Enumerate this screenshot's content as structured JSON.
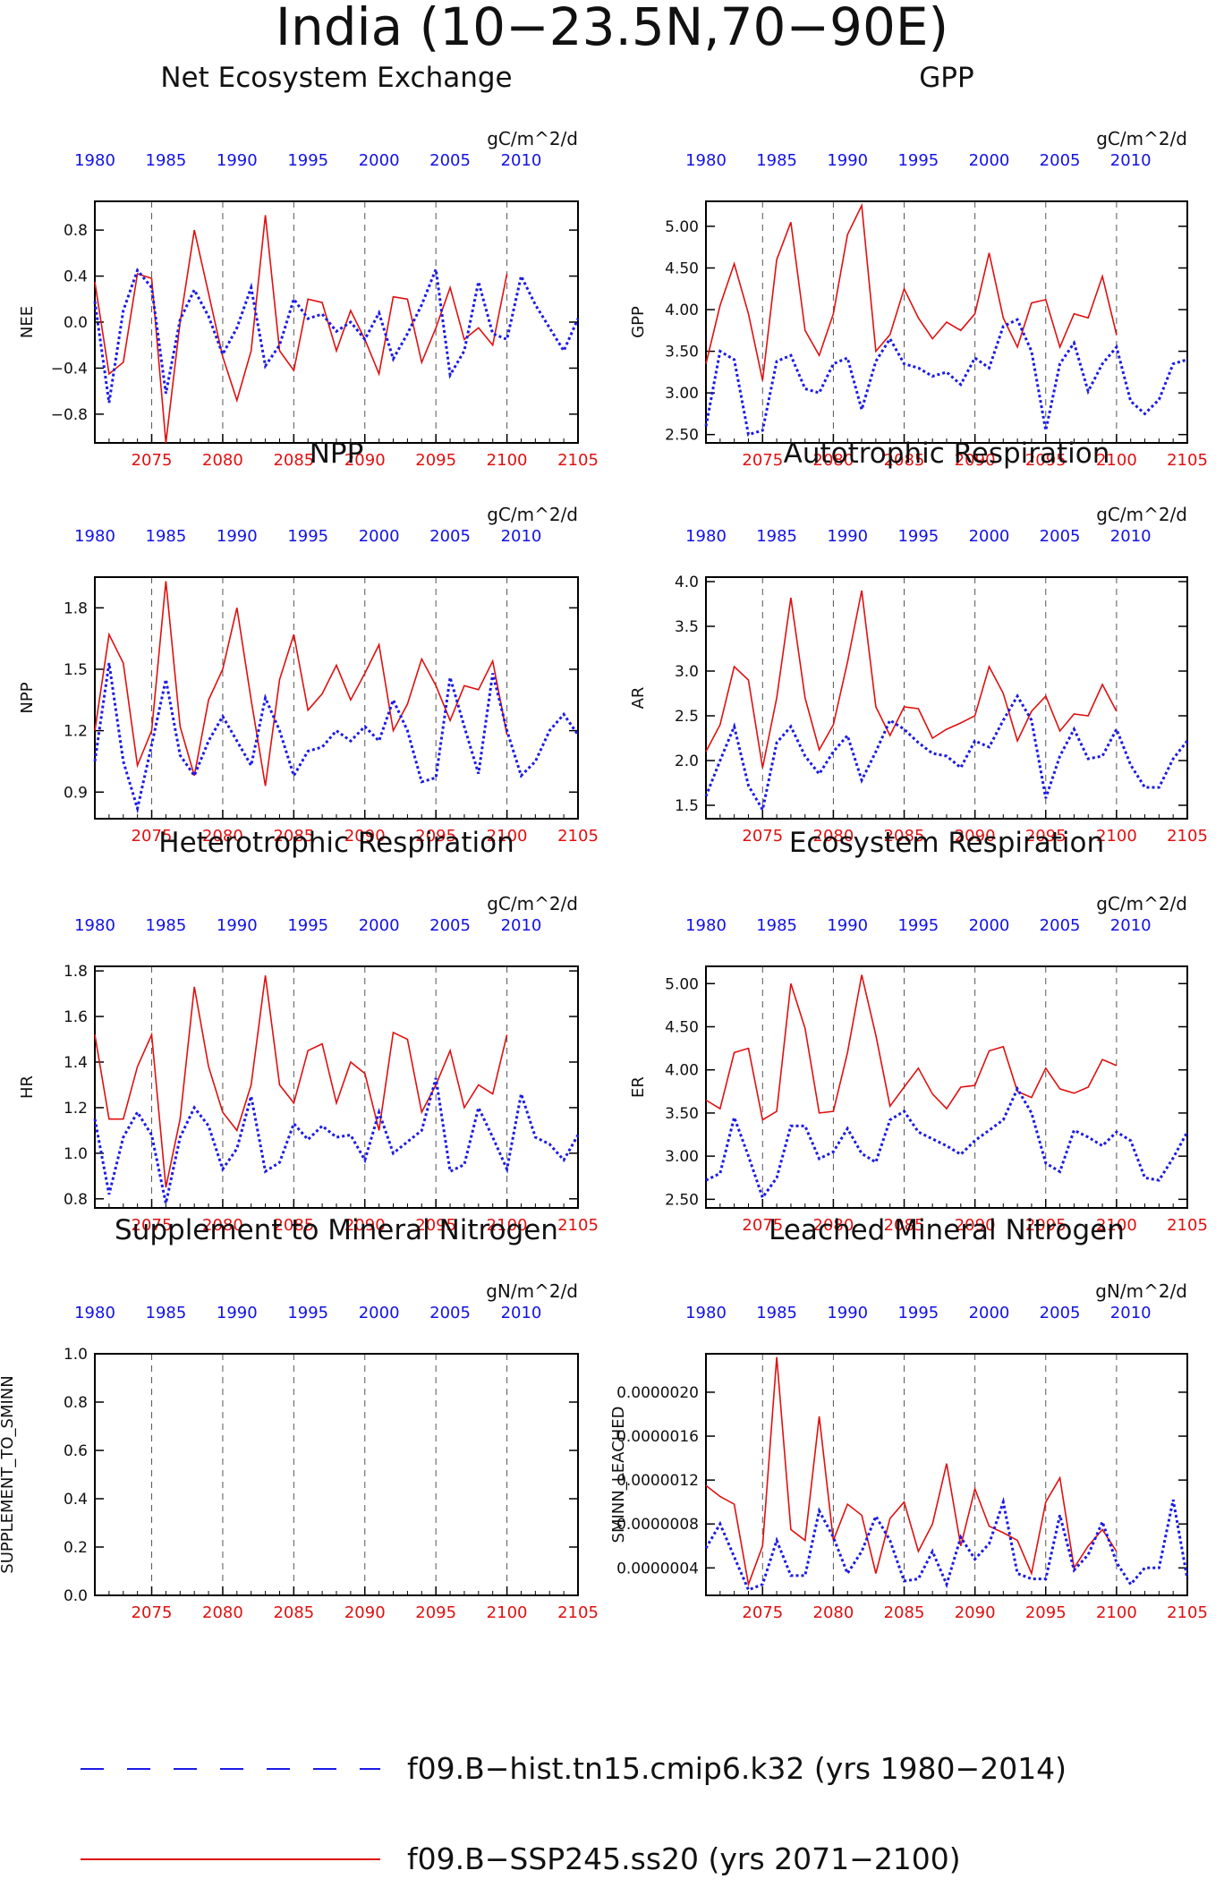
{
  "title": "India (10−23.5N,70−90E)",
  "colors": {
    "hist": "#1a1ae6",
    "ssp": "#e01010",
    "axis": "#000000",
    "grid": "#555555"
  },
  "axes_common": {
    "bottom_ticks": [
      "2075",
      "2080",
      "2085",
      "2090",
      "2095",
      "2100",
      "2105"
    ],
    "top_ticks": [
      "1980",
      "1985",
      "1990",
      "1995",
      "2000",
      "2005",
      "2010"
    ]
  },
  "legend": [
    {
      "label": "f09.B−hist.tn15.cmip6.k32 (yrs 1980−2014)",
      "style": "dashed-blue"
    },
    {
      "label": "f09.B−SSP245.ss20 (yrs 2071−2100)",
      "style": "solid-red"
    }
  ],
  "chart_data": [
    {
      "type": "line",
      "title": "Net Ecosystem Exchange",
      "units": "gC/m^2/d",
      "ylabel": "NEE",
      "ylim": [
        -1.05,
        1.05
      ],
      "yticks": [
        -0.8,
        -0.4,
        0.0,
        0.4,
        0.8
      ],
      "ytick_labels": [
        "−0.8",
        "−0.4",
        "0.0",
        "0.4",
        "0.8"
      ],
      "grid": "dashed vertical at 2075-2100",
      "series": [
        {
          "x_start": 2071,
          "values": [
            0.35,
            -0.45,
            -0.35,
            0.42,
            0.38,
            -1.08,
            0.0,
            0.8,
            0.25,
            -0.3,
            -0.68,
            -0.25,
            0.93,
            -0.25,
            -0.42,
            0.2,
            0.17,
            -0.25,
            0.1,
            -0.15,
            -0.45,
            0.22,
            0.2,
            -0.35,
            -0.05,
            0.3,
            -0.15,
            -0.05,
            -0.2,
            0.42
          ]
        },
        {
          "x_start": 2071,
          "values": [
            0.18,
            -0.7,
            0.1,
            0.45,
            0.3,
            -0.62,
            0.02,
            0.28,
            0.05,
            -0.28,
            -0.05,
            0.3,
            -0.38,
            -0.2,
            0.2,
            0.03,
            0.07,
            -0.08,
            0.0,
            -0.15,
            0.08,
            -0.32,
            -0.1,
            0.15,
            0.46,
            -0.46,
            -0.25,
            0.35,
            -0.1,
            -0.15,
            0.4,
            0.15,
            -0.05,
            -0.25,
            0.03
          ]
        }
      ]
    },
    {
      "type": "line",
      "title": "GPP",
      "units": "gC/m^2/d",
      "ylabel": "GPP",
      "ylim": [
        2.4,
        5.3
      ],
      "yticks": [
        2.5,
        3.0,
        3.5,
        4.0,
        4.5,
        5.0
      ],
      "ytick_labels": [
        "2.50",
        "3.00",
        "3.50",
        "4.00",
        "4.50",
        "5.00"
      ],
      "grid": "dashed vertical at 2075-2100",
      "series": [
        {
          "x_start": 2071,
          "values": [
            3.35,
            4.05,
            4.55,
            3.95,
            3.15,
            4.6,
            5.05,
            3.75,
            3.45,
            3.95,
            4.9,
            5.25,
            3.5,
            3.7,
            4.25,
            3.9,
            3.65,
            3.85,
            3.75,
            3.95,
            4.68,
            3.9,
            3.55,
            4.08,
            4.12,
            3.55,
            3.95,
            3.9,
            4.4,
            3.7
          ]
        },
        {
          "x_start": 2071,
          "values": [
            2.6,
            3.5,
            3.4,
            2.5,
            2.55,
            3.38,
            3.45,
            3.05,
            3.0,
            3.35,
            3.42,
            2.8,
            3.38,
            3.65,
            3.35,
            3.3,
            3.2,
            3.25,
            3.1,
            3.42,
            3.3,
            3.8,
            3.88,
            3.5,
            2.55,
            3.35,
            3.6,
            3.02,
            3.35,
            3.55,
            2.9,
            2.75,
            2.92,
            3.35,
            3.4
          ]
        }
      ]
    },
    {
      "type": "line",
      "title": "NPP",
      "units": "gC/m^2/d",
      "ylabel": "NPP",
      "ylim": [
        0.77,
        1.95
      ],
      "yticks": [
        0.9,
        1.2,
        1.5,
        1.8
      ],
      "ytick_labels": [
        "0.9",
        "1.2",
        "1.5",
        "1.8"
      ],
      "grid": "dashed vertical at 2075-2100",
      "series": [
        {
          "x_start": 2071,
          "values": [
            1.2,
            1.67,
            1.53,
            1.03,
            1.2,
            1.93,
            1.22,
            0.98,
            1.35,
            1.5,
            1.8,
            1.35,
            0.93,
            1.45,
            1.67,
            1.3,
            1.38,
            1.52,
            1.35,
            1.48,
            1.62,
            1.2,
            1.33,
            1.55,
            1.42,
            1.25,
            1.42,
            1.4,
            1.54,
            1.18
          ]
        },
        {
          "x_start": 2071,
          "values": [
            1.05,
            1.53,
            1.05,
            0.82,
            1.13,
            1.45,
            1.08,
            0.98,
            1.15,
            1.27,
            1.15,
            1.03,
            1.36,
            1.2,
            0.98,
            1.1,
            1.12,
            1.2,
            1.15,
            1.22,
            1.15,
            1.35,
            1.2,
            0.95,
            0.97,
            1.46,
            1.22,
            0.99,
            1.48,
            1.2,
            0.98,
            1.05,
            1.2,
            1.28,
            1.18
          ]
        }
      ]
    },
    {
      "type": "line",
      "title": "Autotrophic Respiration",
      "units": "gC/m^2/d",
      "ylabel": "AR",
      "ylim": [
        1.35,
        4.05
      ],
      "yticks": [
        1.5,
        2.0,
        2.5,
        3.0,
        3.5,
        4.0
      ],
      "ytick_labels": [
        "1.5",
        "2.0",
        "2.5",
        "3.0",
        "3.5",
        "4.0"
      ],
      "grid": "dashed vertical at 2075-2100",
      "series": [
        {
          "x_start": 2071,
          "values": [
            2.1,
            2.4,
            3.05,
            2.9,
            1.92,
            2.7,
            3.82,
            2.7,
            2.12,
            2.4,
            3.1,
            3.9,
            2.6,
            2.28,
            2.6,
            2.58,
            2.25,
            2.35,
            2.42,
            2.5,
            3.05,
            2.75,
            2.22,
            2.55,
            2.72,
            2.33,
            2.52,
            2.5,
            2.85,
            2.55
          ]
        },
        {
          "x_start": 2071,
          "values": [
            1.6,
            2.0,
            2.38,
            1.72,
            1.45,
            2.2,
            2.38,
            2.05,
            1.85,
            2.1,
            2.28,
            1.78,
            2.1,
            2.45,
            2.35,
            2.2,
            2.08,
            2.05,
            1.92,
            2.22,
            2.15,
            2.45,
            2.72,
            2.45,
            1.58,
            2.05,
            2.35,
            2.02,
            2.05,
            2.35,
            1.95,
            1.7,
            1.7,
            2.02,
            2.22
          ]
        }
      ]
    },
    {
      "type": "line",
      "title": "Heterotrophic Respiration",
      "units": "gC/m^2/d",
      "ylabel": "HR",
      "ylim": [
        0.76,
        1.82
      ],
      "yticks": [
        0.8,
        1.0,
        1.2,
        1.4,
        1.6,
        1.8
      ],
      "ytick_labels": [
        "0.8",
        "1.0",
        "1.2",
        "1.4",
        "1.6",
        "1.8"
      ],
      "grid": "dashed vertical at 2075-2100",
      "series": [
        {
          "x_start": 2071,
          "values": [
            1.52,
            1.15,
            1.15,
            1.38,
            1.52,
            0.85,
            1.15,
            1.73,
            1.38,
            1.18,
            1.1,
            1.3,
            1.78,
            1.3,
            1.22,
            1.45,
            1.48,
            1.22,
            1.4,
            1.35,
            1.1,
            1.53,
            1.5,
            1.18,
            1.3,
            1.45,
            1.2,
            1.3,
            1.26,
            1.52
          ]
        },
        {
          "x_start": 2071,
          "values": [
            1.15,
            0.82,
            1.07,
            1.18,
            1.08,
            0.78,
            1.07,
            1.2,
            1.12,
            0.93,
            1.02,
            1.25,
            0.92,
            0.96,
            1.13,
            1.06,
            1.12,
            1.07,
            1.08,
            0.97,
            1.18,
            1.0,
            1.05,
            1.1,
            1.33,
            0.92,
            0.95,
            1.2,
            1.07,
            0.93,
            1.26,
            1.07,
            1.04,
            0.97,
            1.08
          ]
        }
      ]
    },
    {
      "type": "line",
      "title": "Ecosystem Respiration",
      "units": "gC/m^2/d",
      "ylabel": "ER",
      "ylim": [
        2.4,
        5.2
      ],
      "yticks": [
        2.5,
        3.0,
        3.5,
        4.0,
        4.5,
        5.0
      ],
      "ytick_labels": [
        "2.50",
        "3.00",
        "3.50",
        "4.00",
        "4.50",
        "5.00"
      ],
      "grid": "dashed vertical at 2075-2100",
      "series": [
        {
          "x_start": 2071,
          "values": [
            3.65,
            3.55,
            4.2,
            4.25,
            3.42,
            3.52,
            5.0,
            4.48,
            3.5,
            3.52,
            4.2,
            5.1,
            4.4,
            3.58,
            3.8,
            4.02,
            3.72,
            3.55,
            3.8,
            3.82,
            4.22,
            4.27,
            3.75,
            3.68,
            4.02,
            3.78,
            3.73,
            3.8,
            4.12,
            4.05
          ]
        },
        {
          "x_start": 2071,
          "values": [
            2.72,
            2.8,
            3.45,
            3.0,
            2.52,
            2.75,
            3.35,
            3.35,
            2.97,
            3.05,
            3.32,
            3.03,
            2.93,
            3.42,
            3.52,
            3.28,
            3.2,
            3.12,
            3.02,
            3.18,
            3.3,
            3.42,
            3.78,
            3.5,
            2.92,
            2.82,
            3.3,
            3.22,
            3.12,
            3.28,
            3.18,
            2.75,
            2.72,
            2.98,
            3.28
          ]
        }
      ]
    },
    {
      "type": "line",
      "title": "Supplement to Mineral Nitrogen",
      "units": "gN/m^2/d",
      "ylabel": "SUPPLEMENT_TO_SMINN",
      "ylim": [
        0.0,
        1.0
      ],
      "yticks": [
        0.0,
        0.2,
        0.4,
        0.6,
        0.8,
        1.0
      ],
      "ytick_labels": [
        "0.0",
        "0.2",
        "0.4",
        "0.6",
        "0.8",
        "1.0"
      ],
      "grid": "dashed vertical at 2075-2100",
      "series": []
    },
    {
      "type": "line",
      "title": "Leached Mineral Nitrogen",
      "units": "gN/m^2/d",
      "ylabel": "SMINN_LEACHED",
      "ylim": [
        1.5e-07,
        2.35e-06
      ],
      "yticks": [
        4e-07,
        8e-07,
        1.2e-06,
        1.6e-06,
        2e-06
      ],
      "ytick_labels": [
        "0.0000004",
        "0.0000008",
        "0.0000012",
        "0.0000016",
        "0.0000020"
      ],
      "grid": "dashed vertical at 2075-2100",
      "series": [
        {
          "x_start": 2071,
          "values": [
            1.15e-06,
            1.05e-06,
            9.8e-07,
            2.5e-07,
            6e-07,
            2.32e-06,
            7.5e-07,
            6.5e-07,
            1.78e-06,
            6.5e-07,
            9.8e-07,
            8.8e-07,
            3.5e-07,
            8.5e-07,
            1e-06,
            5.5e-07,
            8e-07,
            1.35e-06,
            6e-07,
            1.12e-06,
            7.8e-07,
            7.2e-07,
            6.5e-07,
            3.5e-07,
            1e-06,
            1.22e-06,
            4e-07,
            6e-07,
            7.5e-07,
            5.5e-07
          ]
        },
        {
          "x_start": 2071,
          "values": [
            5.8e-07,
            8e-07,
            5e-07,
            2e-07,
            2.5e-07,
            6.5e-07,
            3.3e-07,
            3.3e-07,
            9.2e-07,
            6.8e-07,
            3.5e-07,
            5.5e-07,
            8.7e-07,
            6.5e-07,
            2.8e-07,
            3e-07,
            5.5e-07,
            2.5e-07,
            6.8e-07,
            4.8e-07,
            6.2e-07,
            1e-06,
            3.5e-07,
            3e-07,
            3e-07,
            8.8e-07,
            3.8e-07,
            5.2e-07,
            8.2e-07,
            4.5e-07,
            2.5e-07,
            4e-07,
            4e-07,
            1.02e-06,
            3e-07
          ]
        }
      ]
    }
  ]
}
